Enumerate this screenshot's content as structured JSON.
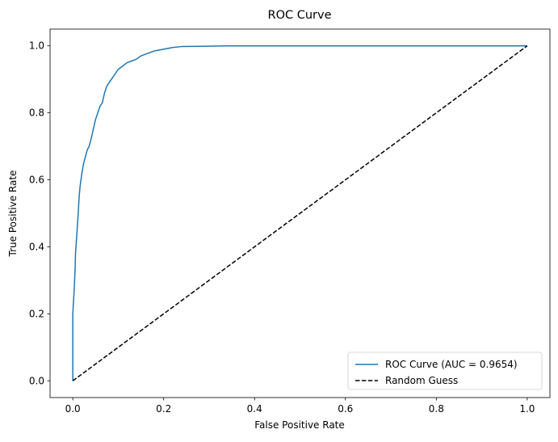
{
  "chart_data": {
    "type": "line",
    "title": "ROC Curve",
    "xlabel": "False Positive Rate",
    "ylabel": "True Positive Rate",
    "xlim": [
      -0.05,
      1.05
    ],
    "ylim": [
      -0.05,
      1.05
    ],
    "x_ticks": [
      {
        "value": 0.0,
        "label": "0.0"
      },
      {
        "value": 0.2,
        "label": "0.2"
      },
      {
        "value": 0.4,
        "label": "0.4"
      },
      {
        "value": 0.6,
        "label": "0.6"
      },
      {
        "value": 0.8,
        "label": "0.8"
      },
      {
        "value": 1.0,
        "label": "1.0"
      }
    ],
    "y_ticks": [
      {
        "value": 0.0,
        "label": "0.0"
      },
      {
        "value": 0.2,
        "label": "0.2"
      },
      {
        "value": 0.4,
        "label": "0.4"
      },
      {
        "value": 0.6,
        "label": "0.6"
      },
      {
        "value": 0.8,
        "label": "0.8"
      },
      {
        "value": 1.0,
        "label": "1.0"
      }
    ],
    "grid": false,
    "legend_position": "lower-right",
    "series": [
      {
        "name": "ROC Curve (AUC = 0.9654)",
        "color": "#1f77b4",
        "style": "solid",
        "x": [
          0.0,
          0.0,
          0.003,
          0.005,
          0.006,
          0.008,
          0.01,
          0.012,
          0.014,
          0.016,
          0.018,
          0.02,
          0.024,
          0.028,
          0.032,
          0.036,
          0.04,
          0.045,
          0.05,
          0.055,
          0.06,
          0.065,
          0.07,
          0.075,
          0.08,
          0.09,
          0.1,
          0.11,
          0.12,
          0.13,
          0.14,
          0.15,
          0.16,
          0.18,
          0.2,
          0.22,
          0.24,
          0.3,
          0.34,
          1.0
        ],
        "y": [
          0.0,
          0.2,
          0.27,
          0.33,
          0.38,
          0.42,
          0.46,
          0.5,
          0.55,
          0.58,
          0.6,
          0.62,
          0.65,
          0.67,
          0.69,
          0.7,
          0.72,
          0.75,
          0.78,
          0.8,
          0.82,
          0.83,
          0.86,
          0.88,
          0.89,
          0.91,
          0.93,
          0.94,
          0.95,
          0.955,
          0.96,
          0.97,
          0.975,
          0.985,
          0.99,
          0.995,
          0.998,
          0.999,
          1.0,
          1.0
        ]
      },
      {
        "name": "Random Guess",
        "color": "#000000",
        "style": "dashed",
        "x": [
          0.0,
          1.0
        ],
        "y": [
          0.0,
          1.0
        ]
      }
    ]
  }
}
